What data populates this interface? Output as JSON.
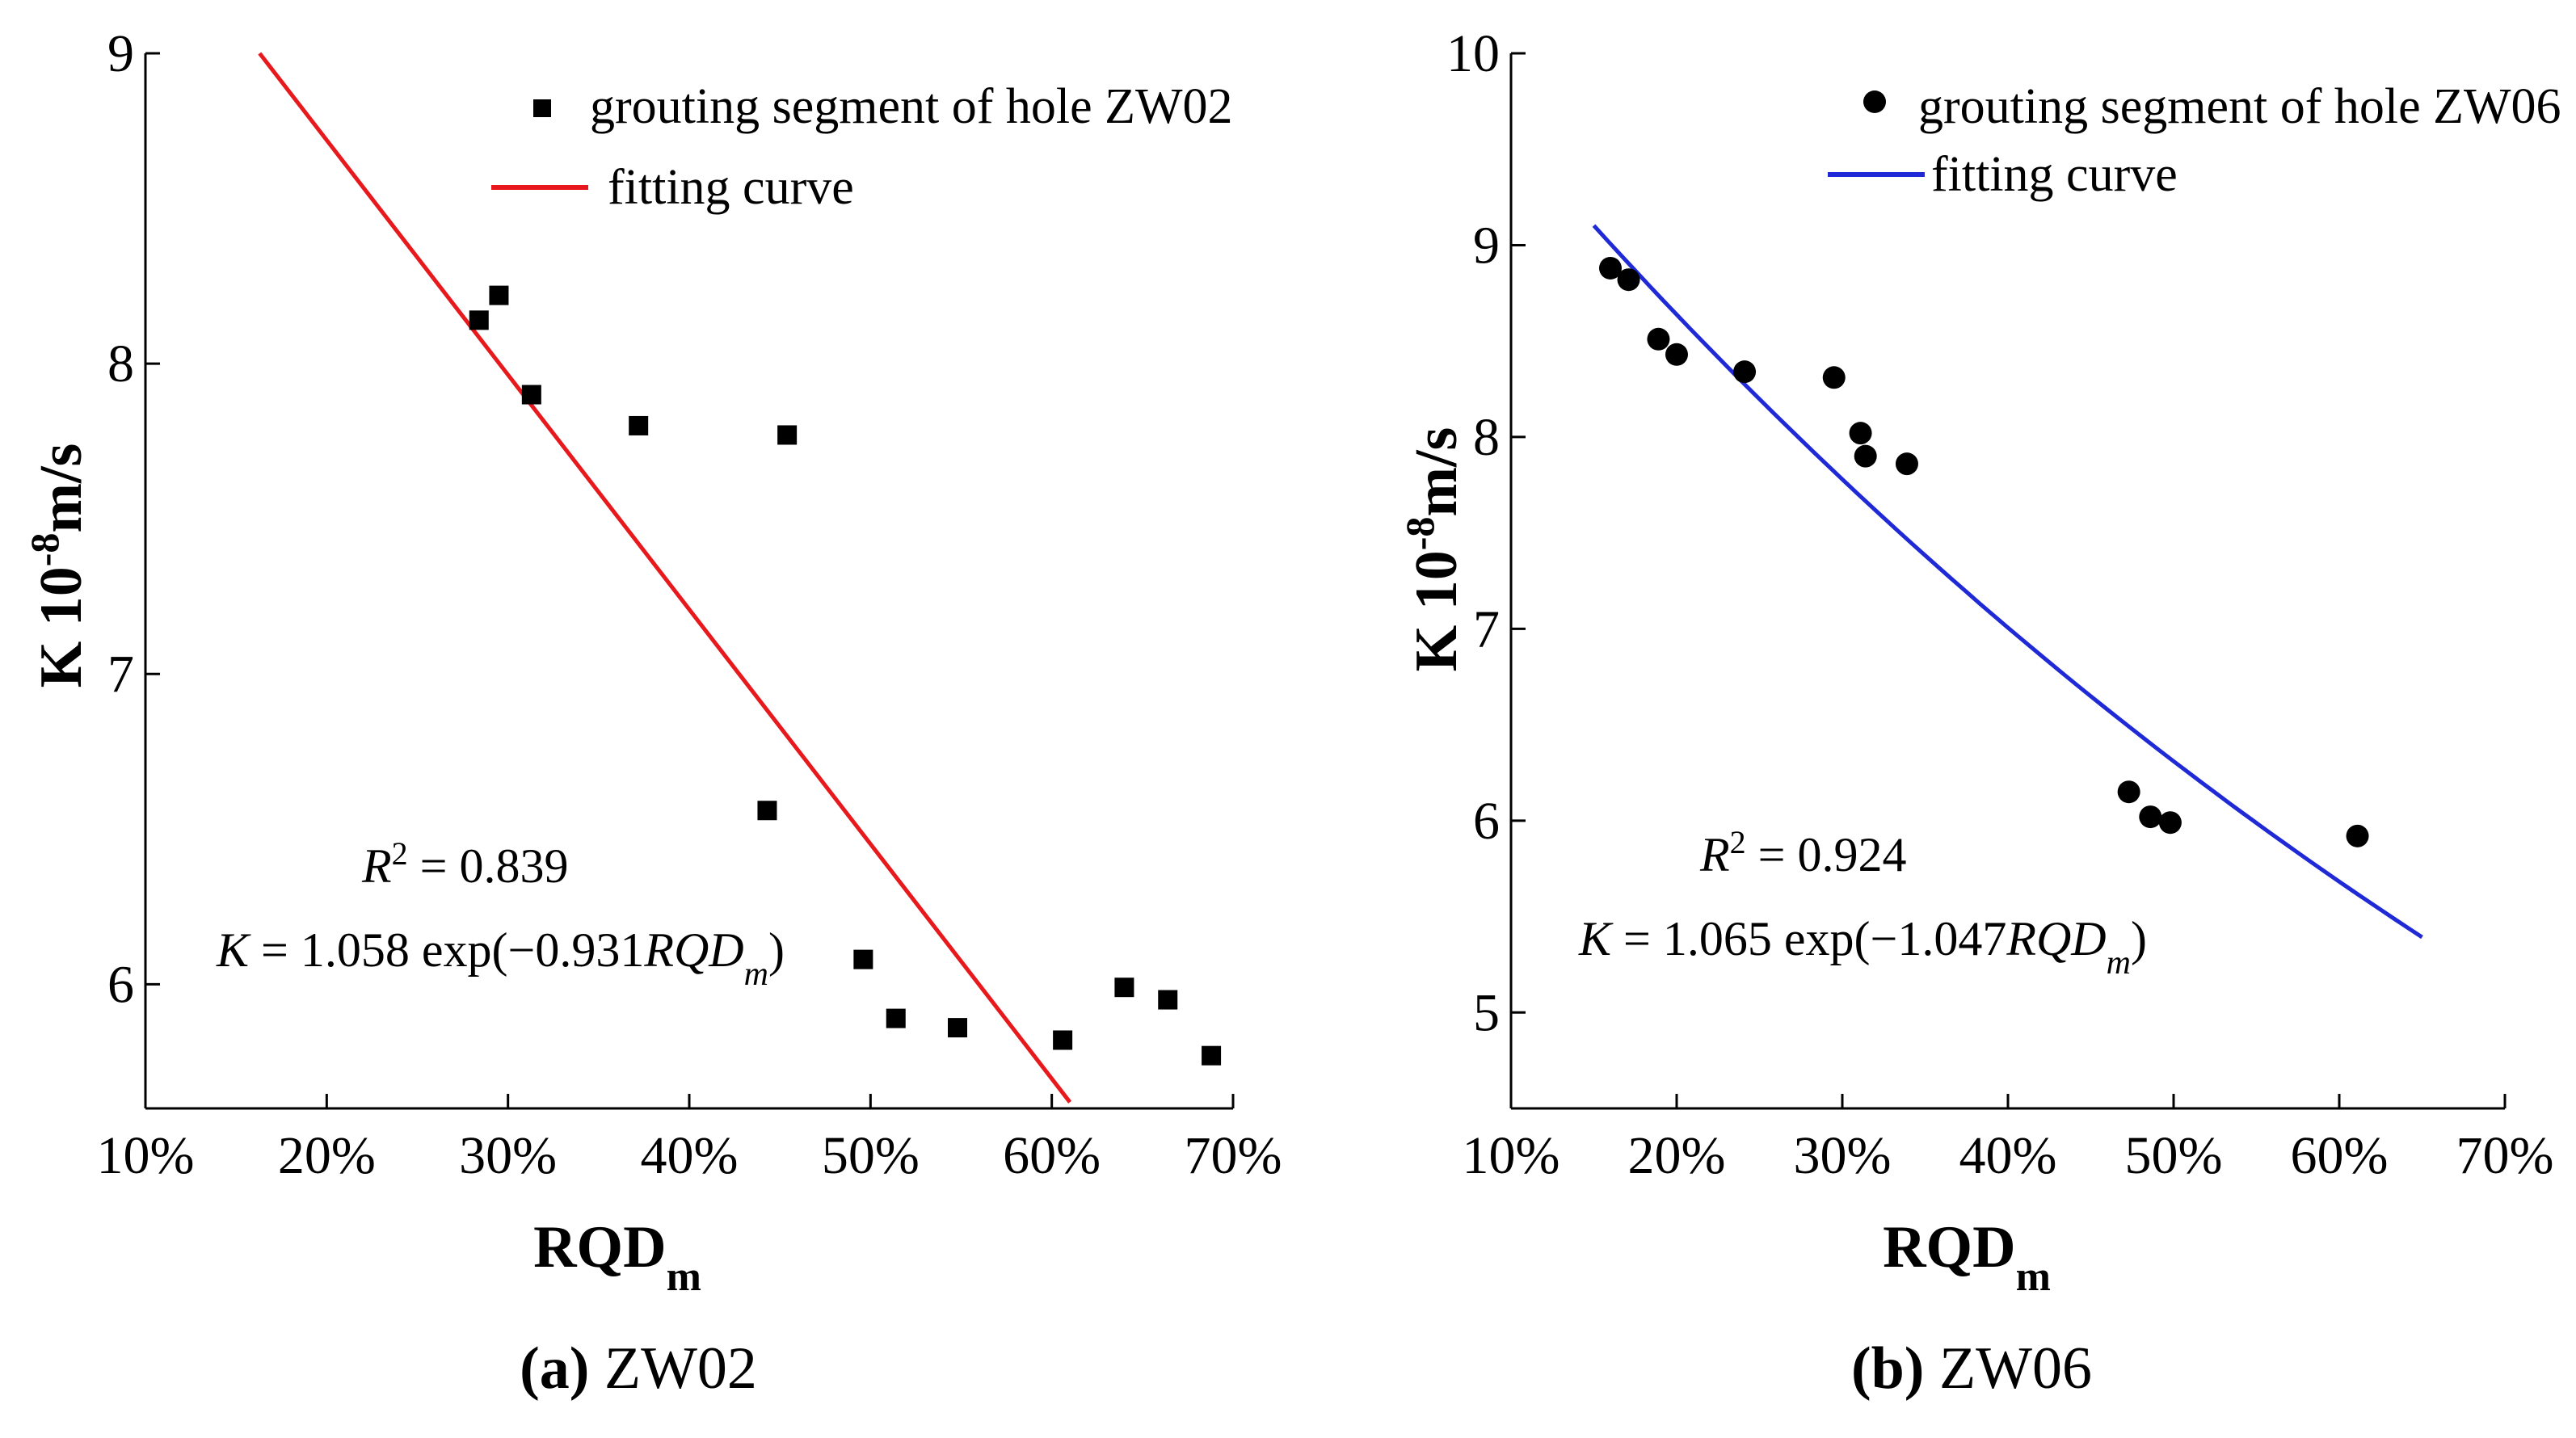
{
  "chart_data": [
    {
      "type": "scatter",
      "x_ticks": [
        "10%",
        "20%",
        "30%",
        "40%",
        "50%",
        "60%",
        "70%"
      ],
      "y_ticks": [
        "6",
        "7",
        "8",
        "9"
      ],
      "xlabel": "RQD",
      "xlabel_sub": "m",
      "ylabel": "K 10",
      "ylabel_sup": "-8",
      "ylabel_tail": "m/s",
      "xlim": [
        0.1,
        0.7
      ],
      "ylim": [
        5.6,
        9.0
      ],
      "legend": {
        "placement": "top-right",
        "scatter_label": "grouting segment of hole ZW02",
        "fit_label": "fitting curve"
      },
      "fit_color": "#e8191c",
      "marker": "square",
      "series": [
        {
          "name": "grouting segment of hole ZW02",
          "points": [
            [
              0.284,
              8.14
            ],
            [
              0.295,
              8.22
            ],
            [
              0.313,
              7.9
            ],
            [
              0.372,
              7.8
            ],
            [
              0.454,
              7.77
            ],
            [
              0.443,
              6.56
            ],
            [
              0.496,
              6.08
            ],
            [
              0.514,
              5.89
            ],
            [
              0.548,
              5.86
            ],
            [
              0.606,
              5.82
            ],
            [
              0.64,
              5.99
            ],
            [
              0.664,
              5.95
            ],
            [
              0.688,
              5.77
            ]
          ]
        },
        {
          "name": "fitting curve",
          "line": [
            [
              0.163,
              9.0
            ],
            [
              0.61,
              5.62
            ]
          ]
        }
      ],
      "annotations": {
        "r2_lhs": "R",
        "r2_sup": "2",
        "r2_rhs": " = 0.839",
        "eq_lhs": "K",
        "eq_mid": " = 1.058 exp(−0.931",
        "eq_var": "RQD",
        "eq_var_sub": "m",
        "eq_end": ")"
      },
      "caption_letter": "(a)",
      "caption_text": " ZW02"
    },
    {
      "type": "scatter",
      "x_ticks": [
        "10%",
        "20%",
        "30%",
        "40%",
        "50%",
        "60%",
        "70%"
      ],
      "y_ticks": [
        "5",
        "6",
        "7",
        "8",
        "9",
        "10"
      ],
      "xlabel": "RQD",
      "xlabel_sub": "m",
      "ylabel": "K 10",
      "ylabel_sup": "-8",
      "ylabel_tail": "m/s",
      "xlim": [
        0.1,
        0.7
      ],
      "ylim": [
        4.5,
        10.0
      ],
      "legend": {
        "placement": "top-right",
        "scatter_label": "grouting segment of hole ZW06",
        "fit_label": "fitting curve"
      },
      "fit_color": "#1f2ad6",
      "marker": "circle",
      "series": [
        {
          "name": "grouting segment of hole ZW06",
          "points": [
            [
              0.16,
              8.88
            ],
            [
              0.171,
              8.82
            ],
            [
              0.189,
              8.51
            ],
            [
              0.2,
              8.43
            ],
            [
              0.241,
              8.34
            ],
            [
              0.295,
              8.31
            ],
            [
              0.311,
              8.02
            ],
            [
              0.314,
              7.9
            ],
            [
              0.339,
              7.86
            ],
            [
              0.473,
              6.15
            ],
            [
              0.486,
              6.02
            ],
            [
              0.498,
              5.99
            ],
            [
              0.611,
              5.92
            ]
          ]
        },
        {
          "name": "fitting curve",
          "fit": {
            "a": 1.065,
            "b": -1.047,
            "x_from": 0.15,
            "x_to": 0.65
          }
        }
      ],
      "annotations": {
        "r2_lhs": "R",
        "r2_sup": "2",
        "r2_rhs": " = 0.924",
        "eq_lhs": "K",
        "eq_mid": " = 1.065 exp(−1.047",
        "eq_var": "RQD",
        "eq_var_sub": "m",
        "eq_end": ")"
      },
      "caption_letter": "(b)",
      "caption_text": " ZW06"
    }
  ]
}
